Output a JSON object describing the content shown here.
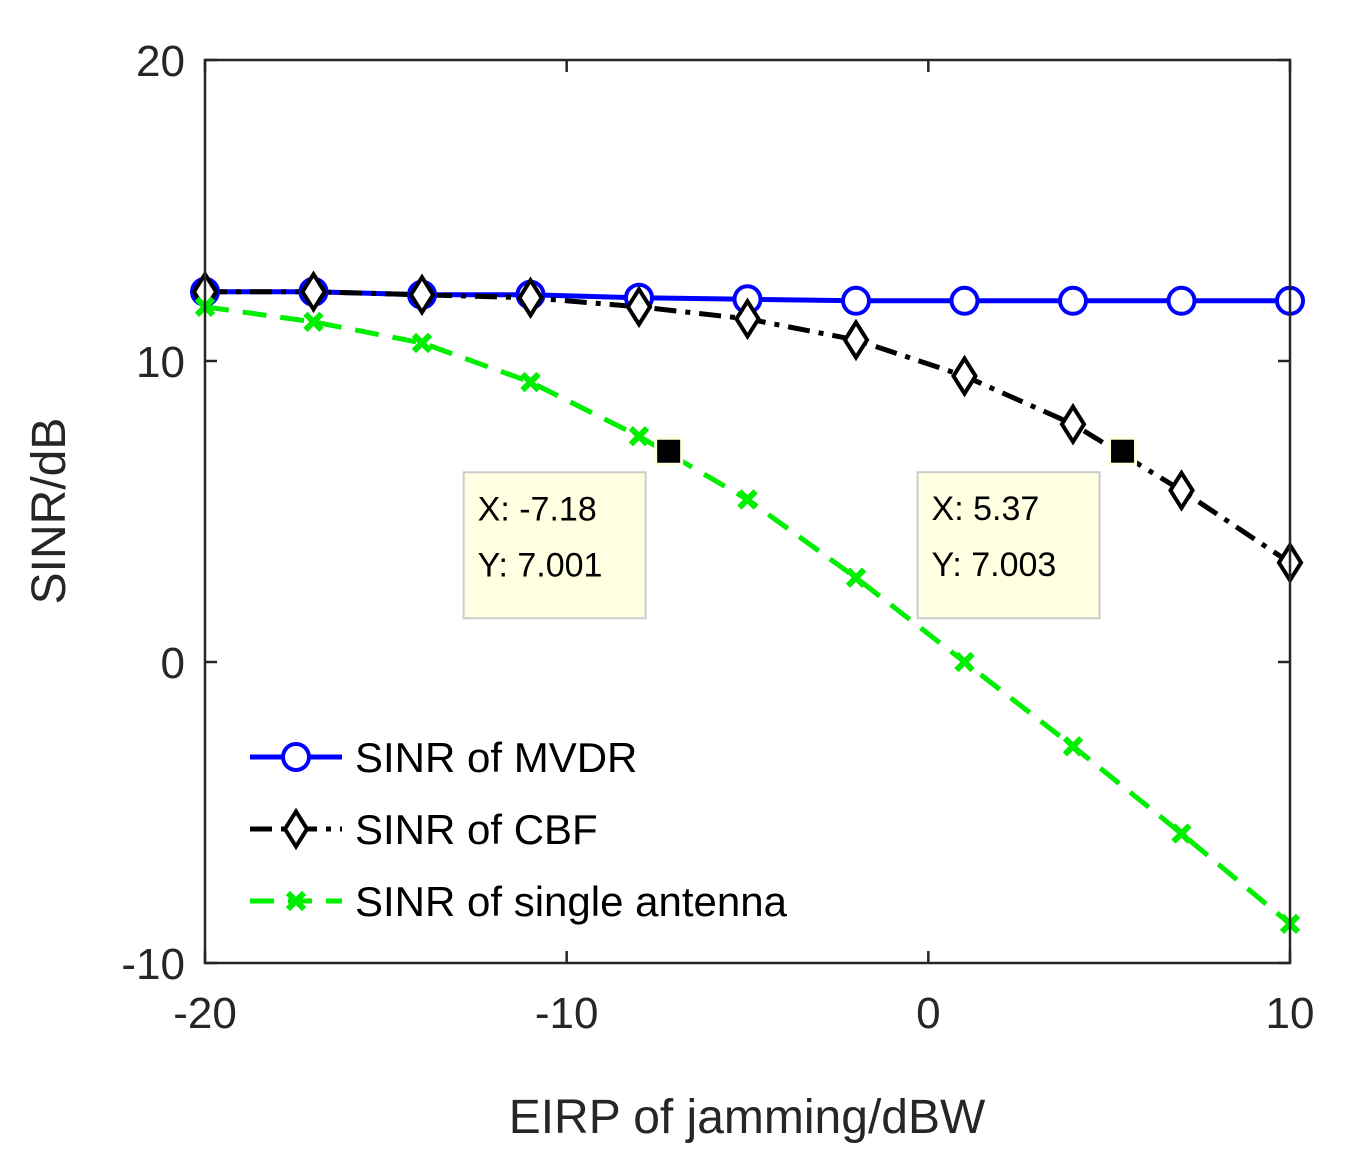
{
  "chart_data": {
    "type": "line",
    "title": "",
    "xlabel": "EIRP of jamming/dBW",
    "ylabel": "SINR/dB",
    "xlim": [
      -20,
      10
    ],
    "ylim": [
      -10,
      20
    ],
    "xticks": [
      -20,
      -10,
      0,
      10
    ],
    "yticks": [
      -10,
      0,
      10,
      20
    ],
    "xtick_labels": [
      "-20",
      "-10",
      "0",
      "10"
    ],
    "ytick_labels": [
      "-10",
      "0",
      "10",
      "20"
    ],
    "grid": false,
    "legend_position": "bottom-left",
    "x": [
      -20,
      -17,
      -14,
      -11,
      -8,
      -5,
      -2,
      1,
      4,
      7,
      10
    ],
    "series": [
      {
        "name": "SINR of MVDR",
        "color": "#0000ff",
        "line_style": "solid",
        "marker": "circle-icon",
        "values": [
          12.3,
          12.3,
          12.2,
          12.2,
          12.1,
          12.05,
          12.0,
          12.0,
          12.0,
          12.0,
          12.0
        ]
      },
      {
        "name": "SINR of CBF",
        "color": "#000000",
        "line_style": "dash-dot",
        "marker": "diamond-icon",
        "values": [
          12.3,
          12.3,
          12.2,
          12.1,
          11.8,
          11.4,
          10.7,
          9.5,
          7.9,
          5.7,
          3.3
        ]
      },
      {
        "name": "SINR of single antenna",
        "color": "#00ee00",
        "line_style": "dashed",
        "marker": "x-mark-icon",
        "values": [
          11.8,
          11.3,
          10.6,
          9.3,
          7.5,
          5.4,
          2.8,
          0.0,
          -2.8,
          -5.7,
          -8.7
        ]
      }
    ],
    "datatips": [
      {
        "x": -7.18,
        "y": 7.001,
        "x_text": "X: -7.18",
        "y_text": "Y: 7.001",
        "placement": "bottom-left"
      },
      {
        "x": 5.37,
        "y": 7.003,
        "x_text": "X: 5.37",
        "y_text": "Y: 7.003",
        "placement": "bottom-left"
      }
    ],
    "tip_style": {
      "fill": "#ffffe1",
      "border": "#cccccc",
      "marker": "#000000"
    }
  }
}
